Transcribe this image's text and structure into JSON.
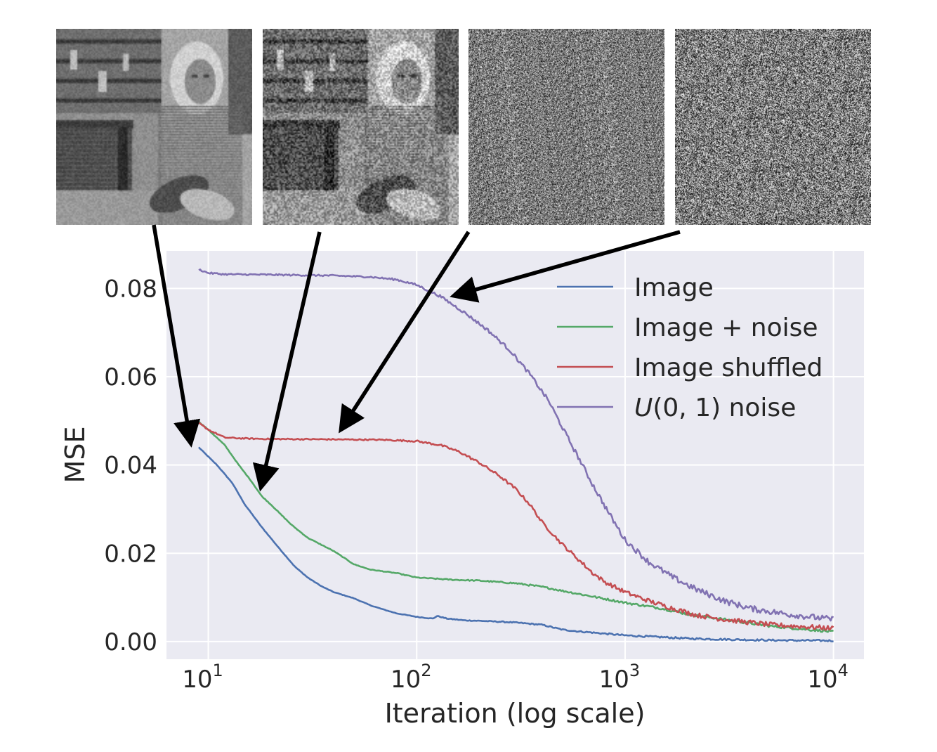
{
  "thumbnails": [
    {
      "name": "Barbara image",
      "kind": "image"
    },
    {
      "name": "Barbara image with noise",
      "kind": "image-noise"
    },
    {
      "name": "Shuffled pixels",
      "kind": "shuffled"
    },
    {
      "name": "Uniform noise",
      "kind": "uniform"
    }
  ],
  "chart_data": {
    "type": "line",
    "xlabel": "Iteration (log scale)",
    "ylabel": "MSE",
    "xscale": "log",
    "xlim": [
      6.3,
      14000
    ],
    "ylim": [
      -0.004,
      0.0885
    ],
    "xticks": [
      10,
      100,
      1000,
      10000
    ],
    "xtick_labels": [
      {
        "base": "10",
        "exp": "1"
      },
      {
        "base": "10",
        "exp": "2"
      },
      {
        "base": "10",
        "exp": "3"
      },
      {
        "base": "10",
        "exp": "4"
      }
    ],
    "yticks": [
      0.0,
      0.02,
      0.04,
      0.06,
      0.08
    ],
    "ytick_labels": [
      "0.00",
      "0.02",
      "0.04",
      "0.06",
      "0.08"
    ],
    "grid": true,
    "legend": {
      "location": "upper right"
    },
    "series": [
      {
        "name": "Image",
        "color": "#4c72b0",
        "noise": 0.00015,
        "points": [
          [
            9,
            0.044
          ],
          [
            11,
            0.04
          ],
          [
            13,
            0.036
          ],
          [
            15,
            0.031
          ],
          [
            18,
            0.026
          ],
          [
            22,
            0.021
          ],
          [
            26,
            0.017
          ],
          [
            30,
            0.0145
          ],
          [
            35,
            0.0125
          ],
          [
            40,
            0.0112
          ],
          [
            50,
            0.0098
          ],
          [
            60,
            0.0082
          ],
          [
            70,
            0.0072
          ],
          [
            80,
            0.0064
          ],
          [
            100,
            0.0056
          ],
          [
            120,
            0.0052
          ],
          [
            125,
            0.0058
          ],
          [
            140,
            0.0052
          ],
          [
            170,
            0.0048
          ],
          [
            200,
            0.0047
          ],
          [
            250,
            0.0045
          ],
          [
            300,
            0.0043
          ],
          [
            400,
            0.0038
          ],
          [
            500,
            0.0027
          ],
          [
            600,
            0.0023
          ],
          [
            800,
            0.0018
          ],
          [
            1000,
            0.0014
          ],
          [
            1500,
            0.001
          ],
          [
            2000,
            0.0007
          ],
          [
            3000,
            0.0005
          ],
          [
            5000,
            0.0003
          ],
          [
            10000,
            0.0002
          ]
        ]
      },
      {
        "name": "Image + noise",
        "color": "#55a868",
        "noise": 0.0002,
        "points": [
          [
            9,
            0.0498
          ],
          [
            10,
            0.048
          ],
          [
            12,
            0.0445
          ],
          [
            14,
            0.04
          ],
          [
            16,
            0.0365
          ],
          [
            18,
            0.033
          ],
          [
            20,
            0.031
          ],
          [
            25,
            0.0265
          ],
          [
            30,
            0.0235
          ],
          [
            40,
            0.0205
          ],
          [
            50,
            0.0175
          ],
          [
            60,
            0.0163
          ],
          [
            80,
            0.0155
          ],
          [
            100,
            0.0145
          ],
          [
            150,
            0.014
          ],
          [
            200,
            0.0138
          ],
          [
            300,
            0.0132
          ],
          [
            400,
            0.0124
          ],
          [
            500,
            0.0115
          ],
          [
            700,
            0.0102
          ],
          [
            1000,
            0.0088
          ],
          [
            1500,
            0.0075
          ],
          [
            2000,
            0.0062
          ],
          [
            3000,
            0.005
          ],
          [
            5000,
            0.0035
          ],
          [
            10000,
            0.0022
          ]
        ]
      },
      {
        "name": "Image shuffled",
        "color": "#c44e52",
        "noise": 0.0004,
        "points": [
          [
            9,
            0.0495
          ],
          [
            10,
            0.048
          ],
          [
            12,
            0.0462
          ],
          [
            15,
            0.046
          ],
          [
            20,
            0.0459
          ],
          [
            40,
            0.0458
          ],
          [
            70,
            0.0457
          ],
          [
            100,
            0.0454
          ],
          [
            130,
            0.0445
          ],
          [
            160,
            0.043
          ],
          [
            200,
            0.0405
          ],
          [
            250,
            0.0375
          ],
          [
            300,
            0.0345
          ],
          [
            350,
            0.031
          ],
          [
            400,
            0.027
          ],
          [
            500,
            0.022
          ],
          [
            600,
            0.0185
          ],
          [
            700,
            0.0155
          ],
          [
            800,
            0.0135
          ],
          [
            1000,
            0.0112
          ],
          [
            1300,
            0.0092
          ],
          [
            1700,
            0.0075
          ],
          [
            2200,
            0.006
          ],
          [
            3000,
            0.005
          ],
          [
            5000,
            0.0038
          ],
          [
            10000,
            0.003
          ]
        ]
      },
      {
        "name": "U(0,1) noise",
        "color": "#8172b2",
        "noise": 0.0005,
        "points": [
          [
            9,
            0.0843
          ],
          [
            10,
            0.0835
          ],
          [
            12,
            0.0832
          ],
          [
            20,
            0.0831
          ],
          [
            40,
            0.0829
          ],
          [
            60,
            0.0826
          ],
          [
            80,
            0.082
          ],
          [
            100,
            0.0808
          ],
          [
            130,
            0.0782
          ],
          [
            170,
            0.0745
          ],
          [
            220,
            0.0705
          ],
          [
            280,
            0.066
          ],
          [
            350,
            0.0605
          ],
          [
            430,
            0.0545
          ],
          [
            500,
            0.0485
          ],
          [
            600,
            0.0415
          ],
          [
            700,
            0.0355
          ],
          [
            850,
            0.0285
          ],
          [
            1000,
            0.023
          ],
          [
            1300,
            0.018
          ],
          [
            1700,
            0.0145
          ],
          [
            2200,
            0.0118
          ],
          [
            3000,
            0.0092
          ],
          [
            4000,
            0.0075
          ],
          [
            6000,
            0.0062
          ],
          [
            10000,
            0.005
          ]
        ]
      }
    ],
    "annotations": [
      {
        "type": "arrow",
        "from_thumbnail": 0,
        "to": [
          8.2,
          0.0455
        ]
      },
      {
        "type": "arrow",
        "from_thumbnail": 1,
        "to": [
          18,
          0.0355
        ]
      },
      {
        "type": "arrow",
        "from_thumbnail": 2,
        "to": [
          44,
          0.0485
        ]
      },
      {
        "type": "arrow",
        "from_thumbnail": 3,
        "to": [
          155,
          0.0785
        ]
      }
    ]
  }
}
